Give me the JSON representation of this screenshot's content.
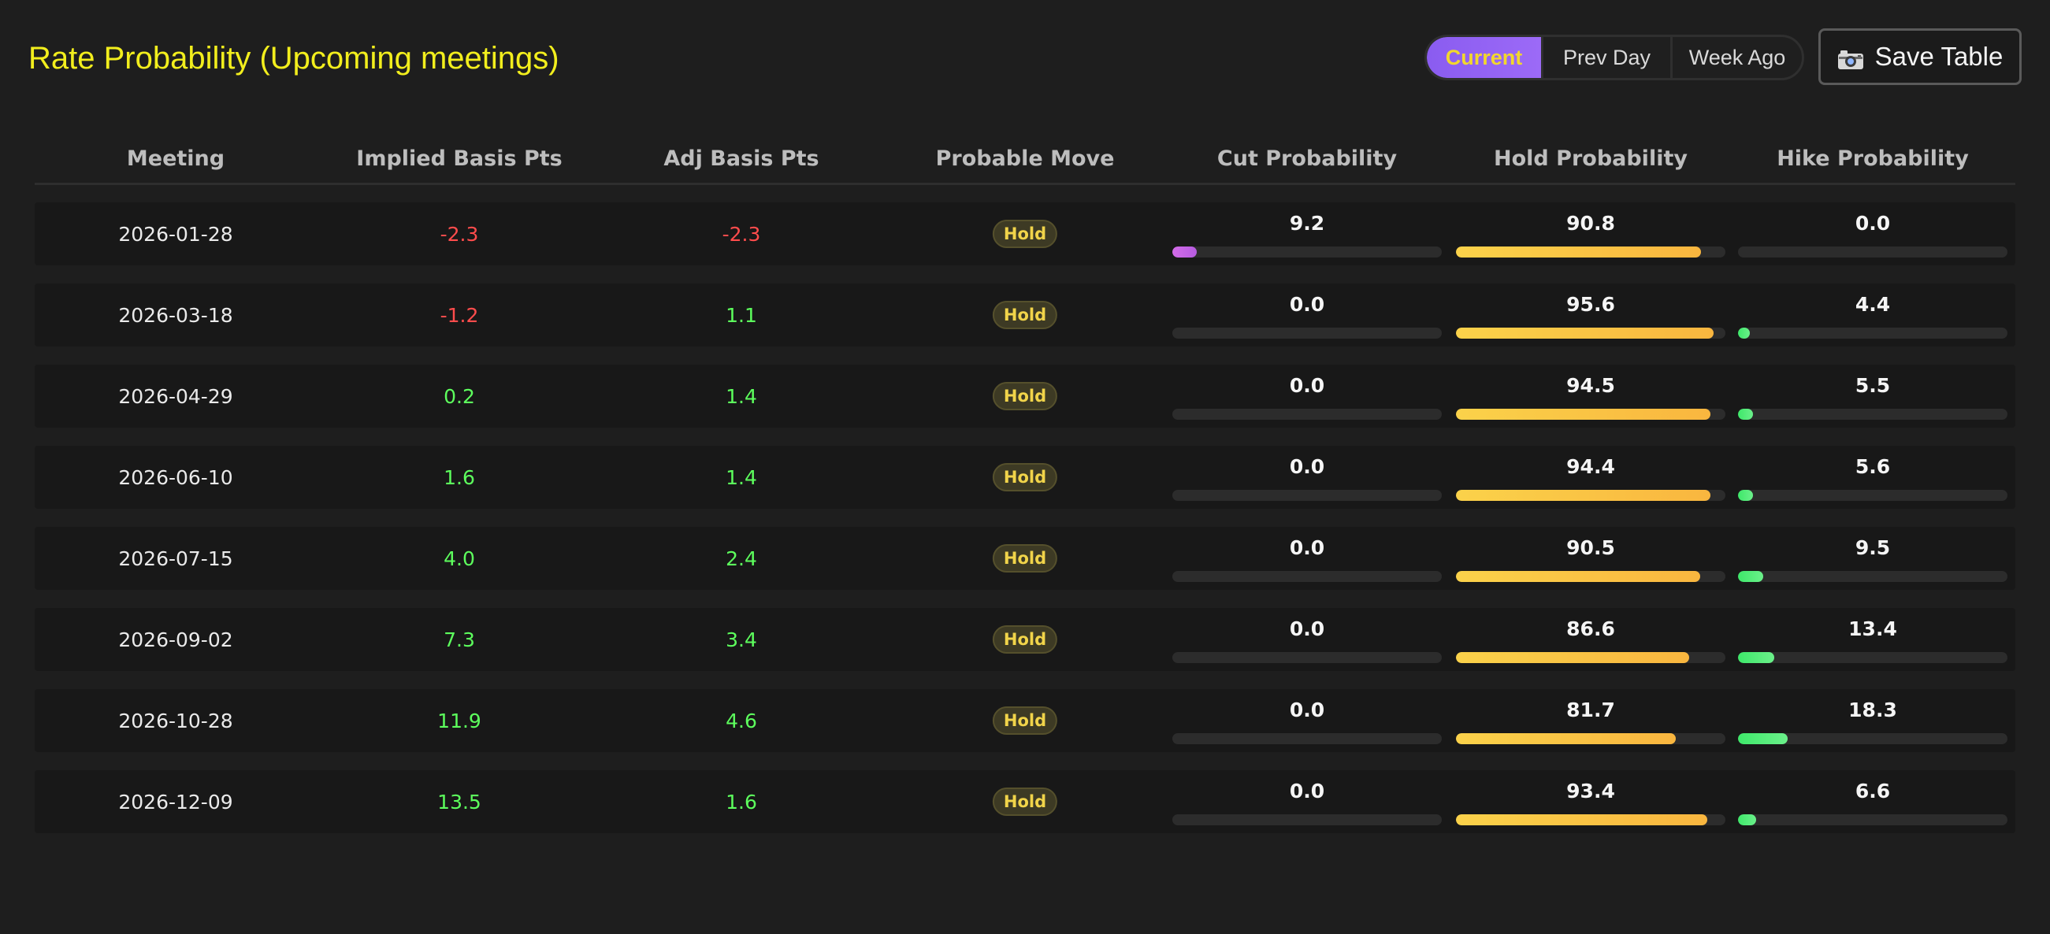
{
  "header": {
    "title": "Rate Probability (Upcoming meetings)",
    "view_options": [
      "Current",
      "Prev Day",
      "Week Ago"
    ],
    "active_view": "Current",
    "save_button_label": "Save Table",
    "save_icon": "camera-icon"
  },
  "colors": {
    "title": "#f2ee1d",
    "active_segment": "#8a5cf0",
    "negative": "#ff4c4c",
    "positive": "#5dff5d",
    "cut_bar": "#c765e6",
    "hold_bar": "#fbc646",
    "hike_bar": "#4eec79"
  },
  "table": {
    "columns": [
      "Meeting",
      "Implied Basis Pts",
      "Adj Basis Pts",
      "Probable Move",
      "Cut Probability",
      "Hold Probability",
      "Hike Probability"
    ],
    "rows": [
      {
        "meeting": "2026-01-28",
        "implied": "-2.3",
        "adj": "-2.3",
        "move": "Hold",
        "cut": "9.2",
        "hold": "90.8",
        "hike": "0.0"
      },
      {
        "meeting": "2026-03-18",
        "implied": "-1.2",
        "adj": "1.1",
        "move": "Hold",
        "cut": "0.0",
        "hold": "95.6",
        "hike": "4.4"
      },
      {
        "meeting": "2026-04-29",
        "implied": "0.2",
        "adj": "1.4",
        "move": "Hold",
        "cut": "0.0",
        "hold": "94.5",
        "hike": "5.5"
      },
      {
        "meeting": "2026-06-10",
        "implied": "1.6",
        "adj": "1.4",
        "move": "Hold",
        "cut": "0.0",
        "hold": "94.4",
        "hike": "5.6"
      },
      {
        "meeting": "2026-07-15",
        "implied": "4.0",
        "adj": "2.4",
        "move": "Hold",
        "cut": "0.0",
        "hold": "90.5",
        "hike": "9.5"
      },
      {
        "meeting": "2026-09-02",
        "implied": "7.3",
        "adj": "3.4",
        "move": "Hold",
        "cut": "0.0",
        "hold": "86.6",
        "hike": "13.4"
      },
      {
        "meeting": "2026-10-28",
        "implied": "11.9",
        "adj": "4.6",
        "move": "Hold",
        "cut": "0.0",
        "hold": "81.7",
        "hike": "18.3"
      },
      {
        "meeting": "2026-12-09",
        "implied": "13.5",
        "adj": "1.6",
        "move": "Hold",
        "cut": "0.0",
        "hold": "93.4",
        "hike": "6.6"
      }
    ]
  }
}
